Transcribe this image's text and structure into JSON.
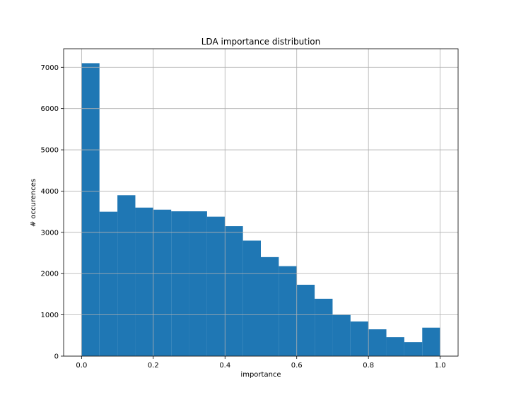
{
  "chart_data": {
    "type": "bar",
    "title": "LDA importance distribution",
    "xlabel": "importance",
    "ylabel": "# occurences",
    "xlim": [
      -0.05,
      1.05
    ],
    "ylim": [
      0,
      7450
    ],
    "xticks": [
      0.0,
      0.2,
      0.4,
      0.6,
      0.8,
      1.0
    ],
    "xtick_labels": [
      "0.0",
      "0.2",
      "0.4",
      "0.6",
      "0.8",
      "1.0"
    ],
    "yticks": [
      0,
      1000,
      2000,
      3000,
      4000,
      5000,
      6000,
      7000
    ],
    "ytick_labels": [
      "0",
      "1000",
      "2000",
      "3000",
      "4000",
      "5000",
      "6000",
      "7000"
    ],
    "grid": true,
    "bar_color": "#1f77b4",
    "bin_edges": [
      0.0,
      0.05,
      0.1,
      0.15,
      0.2,
      0.25,
      0.3,
      0.35,
      0.4,
      0.45,
      0.5,
      0.55,
      0.6,
      0.65,
      0.7,
      0.75,
      0.8,
      0.85,
      0.9,
      0.95,
      1.0
    ],
    "values": [
      7100,
      3500,
      3900,
      3600,
      3550,
      3510,
      3510,
      3380,
      3150,
      2800,
      2400,
      2180,
      1730,
      1390,
      1010,
      840,
      650,
      460,
      340,
      690
    ]
  }
}
